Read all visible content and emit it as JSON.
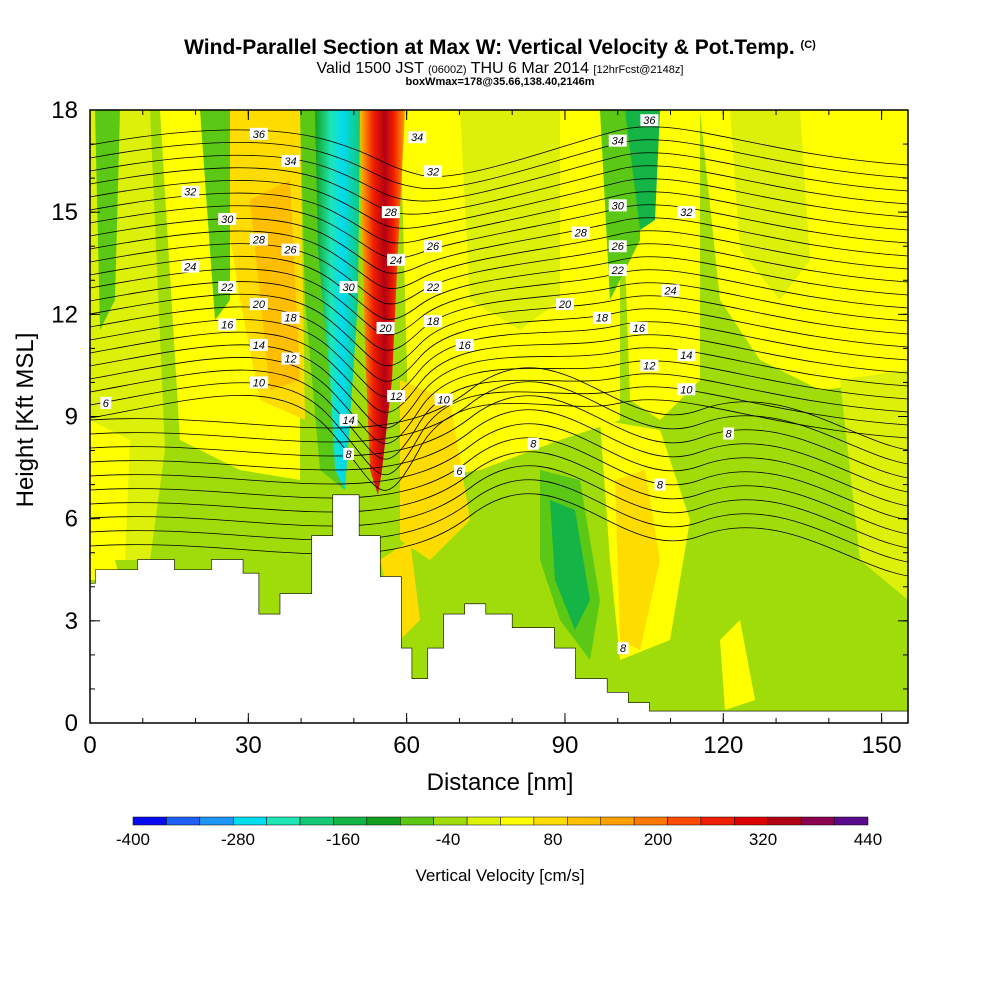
{
  "header": {
    "title": "Wind-Parallel Section at Max W: Vertical Velocity & Pot.Temp.",
    "copyright": "(C)",
    "valid_prefix": "Valid 1500 JST",
    "valid_utc": "(0600Z)",
    "valid_suffix": "THU 6 Mar 2014",
    "forecast": "[12hrFcst@2148z]",
    "box_info": "boxWmax=178@35.66,138.40,2146m"
  },
  "colorbar": {
    "label": "Vertical Velocity [cm/s]",
    "tick_labels": [
      "-400",
      "-280",
      "-160",
      "-40",
      "80",
      "200",
      "320",
      "440"
    ],
    "colors": [
      "#0a0af0",
      "#1e5ff5",
      "#1e96f5",
      "#00dcf0",
      "#1ee6b4",
      "#14c878",
      "#14b446",
      "#14a01e",
      "#5ac814",
      "#a0dc0a",
      "#dcf00a",
      "#ffff00",
      "#ffdc00",
      "#ffbe00",
      "#ffa000",
      "#ff7800",
      "#ff4b00",
      "#f01e00",
      "#dc0000",
      "#b40014",
      "#8c0050",
      "#5a0a8c"
    ]
  },
  "chart_data": {
    "type": "heatmap",
    "title": "Wind-Parallel Section at Max W: Vertical Velocity & Pot.Temp.",
    "xlabel": "Distance [nm]",
    "ylabel": "Height [Kft MSL]",
    "xlim": [
      0,
      155
    ],
    "ylim": [
      0,
      18
    ],
    "x_ticks": [
      0,
      30,
      60,
      90,
      120,
      150
    ],
    "y_ticks": [
      0,
      3,
      6,
      9,
      12,
      15,
      18
    ],
    "terrain_profile": {
      "x": [
        0,
        1,
        1,
        3,
        3,
        9,
        9,
        16,
        16,
        23,
        23,
        29,
        29,
        32,
        32,
        36,
        36,
        42,
        42,
        46,
        46,
        51,
        51,
        55,
        55,
        59,
        59,
        61,
        61,
        64,
        64,
        67,
        67,
        71,
        71,
        75,
        75,
        80,
        80,
        88,
        88,
        92,
        92,
        98,
        98,
        102,
        102,
        106,
        106,
        155
      ],
      "height": [
        4.1,
        4.1,
        4.5,
        4.5,
        4.5,
        4.5,
        4.8,
        4.8,
        4.5,
        4.5,
        4.8,
        4.8,
        4.4,
        4.4,
        3.2,
        3.2,
        3.8,
        3.8,
        5.5,
        5.5,
        6.7,
        6.7,
        5.5,
        5.5,
        4.3,
        4.3,
        2.2,
        2.2,
        1.3,
        1.3,
        2.2,
        2.2,
        3.2,
        3.2,
        3.5,
        3.5,
        3.2,
        3.2,
        2.8,
        2.8,
        2.2,
        2.2,
        1.3,
        1.3,
        0.9,
        0.9,
        0.6,
        0.6,
        0.35,
        0.35
      ]
    },
    "vertical_velocity_units": "cm/s",
    "vertical_velocity_range": [
      -400,
      440
    ],
    "vertical_velocity_features": [
      {
        "x": 48,
        "value": -300
      },
      {
        "x": 55,
        "value": 400
      },
      {
        "x": 103,
        "value": -130
      },
      {
        "x": 102,
        "value": 100
      },
      {
        "x": 90,
        "value": -100
      }
    ],
    "potential_temperature_contour_labels": [
      {
        "value": "6",
        "x": 3,
        "y": 9.4
      },
      {
        "value": "6",
        "x": 70,
        "y": 7.4
      },
      {
        "value": "8",
        "x": 49,
        "y": 7.9
      },
      {
        "value": "8",
        "x": 84,
        "y": 8.2
      },
      {
        "value": "8",
        "x": 108,
        "y": 7.0
      },
      {
        "value": "8",
        "x": 121,
        "y": 8.5
      },
      {
        "value": "8",
        "x": 101,
        "y": 2.2
      },
      {
        "value": "10",
        "x": 32,
        "y": 10.0
      },
      {
        "value": "10",
        "x": 67,
        "y": 9.5
      },
      {
        "value": "10",
        "x": 113,
        "y": 9.8
      },
      {
        "value": "12",
        "x": 38,
        "y": 10.7
      },
      {
        "value": "12",
        "x": 58,
        "y": 9.6
      },
      {
        "value": "12",
        "x": 106,
        "y": 10.5
      },
      {
        "value": "14",
        "x": 32,
        "y": 11.1
      },
      {
        "value": "14",
        "x": 49,
        "y": 8.9
      },
      {
        "value": "14",
        "x": 113,
        "y": 10.8
      },
      {
        "value": "16",
        "x": 26,
        "y": 11.7
      },
      {
        "value": "16",
        "x": 71,
        "y": 11.1
      },
      {
        "value": "16",
        "x": 104,
        "y": 11.6
      },
      {
        "value": "18",
        "x": 38,
        "y": 11.9
      },
      {
        "value": "18",
        "x": 65,
        "y": 11.8
      },
      {
        "value": "18",
        "x": 97,
        "y": 11.9
      },
      {
        "value": "20",
        "x": 32,
        "y": 12.3
      },
      {
        "value": "20",
        "x": 56,
        "y": 11.6
      },
      {
        "value": "20",
        "x": 90,
        "y": 12.3
      },
      {
        "value": "22",
        "x": 26,
        "y": 12.8
      },
      {
        "value": "22",
        "x": 65,
        "y": 12.8
      },
      {
        "value": "22",
        "x": 100,
        "y": 13.3
      },
      {
        "value": "24",
        "x": 19,
        "y": 13.4
      },
      {
        "value": "24",
        "x": 58,
        "y": 13.6
      },
      {
        "value": "24",
        "x": 110,
        "y": 12.7
      },
      {
        "value": "26",
        "x": 38,
        "y": 13.9
      },
      {
        "value": "26",
        "x": 65,
        "y": 14.0
      },
      {
        "value": "26",
        "x": 100,
        "y": 14.0
      },
      {
        "value": "28",
        "x": 32,
        "y": 14.2
      },
      {
        "value": "28",
        "x": 57,
        "y": 15.0
      },
      {
        "value": "28",
        "x": 93,
        "y": 14.4
      },
      {
        "value": "30",
        "x": 26,
        "y": 14.8
      },
      {
        "value": "30",
        "x": 49,
        "y": 12.8
      },
      {
        "value": "30",
        "x": 100,
        "y": 15.2
      },
      {
        "value": "32",
        "x": 19,
        "y": 15.6
      },
      {
        "value": "32",
        "x": 65,
        "y": 16.2
      },
      {
        "value": "32",
        "x": 113,
        "y": 15.0
      },
      {
        "value": "34",
        "x": 38,
        "y": 16.5
      },
      {
        "value": "34",
        "x": 62,
        "y": 17.2
      },
      {
        "value": "34",
        "x": 100,
        "y": 17.1
      },
      {
        "value": "36",
        "x": 32,
        "y": 17.3
      },
      {
        "value": "36",
        "x": 106,
        "y": 17.7
      }
    ]
  }
}
